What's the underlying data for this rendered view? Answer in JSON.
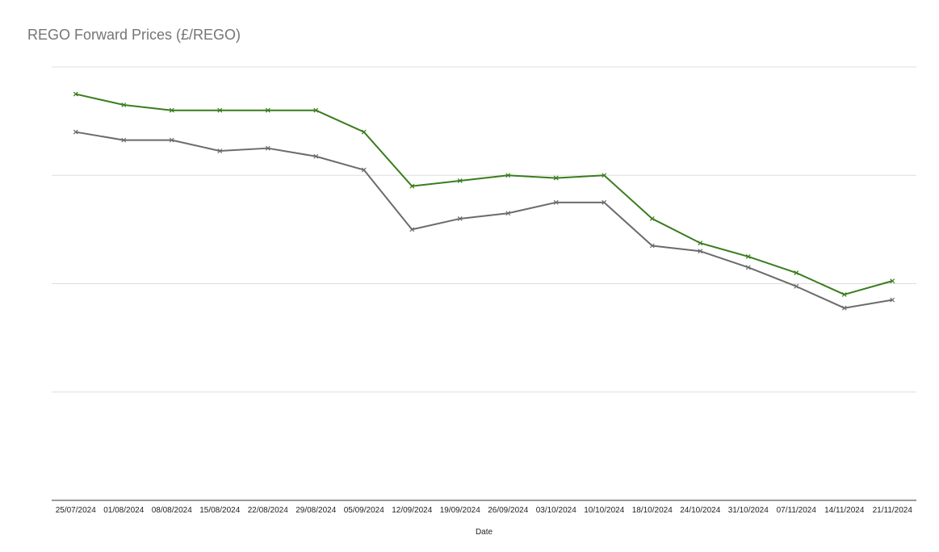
{
  "chart_data": {
    "type": "line",
    "title": "REGO Forward Prices (£/REGO)",
    "xlabel": "Date",
    "ylabel": "",
    "categories": [
      "25/07/2024",
      "01/08/2024",
      "08/08/2024",
      "15/08/2024",
      "22/08/2024",
      "29/08/2024",
      "05/09/2024",
      "12/09/2024",
      "19/09/2024",
      "26/09/2024",
      "03/10/2024",
      "10/10/2024",
      "18/10/2024",
      "24/10/2024",
      "31/10/2024",
      "07/11/2024",
      "14/11/2024",
      "21/11/2024"
    ],
    "ylim": [
      0,
      4
    ],
    "grid": true,
    "legend": "none",
    "series": [
      {
        "color": "#3a7d1e",
        "marker": "x",
        "values": [
          3.75,
          3.65,
          3.6,
          3.6,
          3.6,
          3.6,
          3.4,
          2.9,
          2.95,
          3.0,
          2.975,
          3.0,
          2.6,
          2.375,
          2.25,
          2.1,
          1.9,
          2.025
        ]
      },
      {
        "color": "#6b6b6b",
        "marker": "x",
        "values": [
          3.4,
          3.325,
          3.325,
          3.225,
          3.25,
          3.175,
          3.05,
          2.5,
          2.6,
          2.65,
          2.75,
          2.75,
          2.35,
          2.3,
          2.15,
          1.975,
          1.775,
          1.85
        ]
      }
    ],
    "colors": {
      "grid": "#dddddd",
      "axis": "#333333"
    }
  }
}
